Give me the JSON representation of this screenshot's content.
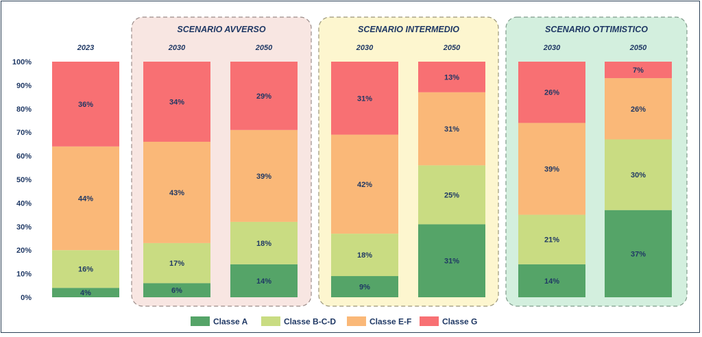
{
  "chart_data": {
    "type": "bar",
    "stacked": true,
    "y_ticks": [
      "0%",
      "10%",
      "20%",
      "30%",
      "40%",
      "50%",
      "60%",
      "70%",
      "80%",
      "90%",
      "100%"
    ],
    "ylim": [
      0,
      100
    ],
    "grid": false,
    "legend_position": "bottom",
    "classes": [
      {
        "name": "Classe A",
        "color": "#55a468"
      },
      {
        "name": "Classe B-C-D",
        "color": "#c9dc82"
      },
      {
        "name": "Classe E-F",
        "color": "#fab878"
      },
      {
        "name": "Classe G",
        "color": "#f87073"
      }
    ],
    "groups": [
      {
        "title": "",
        "background": null,
        "bars": [
          {
            "year": "2023",
            "values": [
              4,
              16,
              44,
              36
            ]
          }
        ]
      },
      {
        "title": "SCENARIO AVVERSO",
        "background": "#f8e6e2",
        "border": "#9a8b88",
        "bars": [
          {
            "year": "2030",
            "values": [
              6,
              17,
              43,
              34
            ]
          },
          {
            "year": "2050",
            "values": [
              14,
              18,
              39,
              29
            ]
          }
        ]
      },
      {
        "title": "SCENARIO INTERMEDIO",
        "background": "#fdf6cf",
        "border": "#9a9578",
        "bars": [
          {
            "year": "2030",
            "values": [
              9,
              18,
              42,
              31
            ]
          },
          {
            "year": "2050",
            "values": [
              31,
              25,
              31,
              13
            ]
          }
        ]
      },
      {
        "title": "SCENARIO OTTIMISTICO",
        "background": "#d3efde",
        "border": "#7f9a8a",
        "bars": [
          {
            "year": "2030",
            "values": [
              14,
              21,
              39,
              26
            ]
          },
          {
            "year": "2050",
            "values": [
              37,
              30,
              26,
              7
            ]
          }
        ]
      }
    ]
  }
}
